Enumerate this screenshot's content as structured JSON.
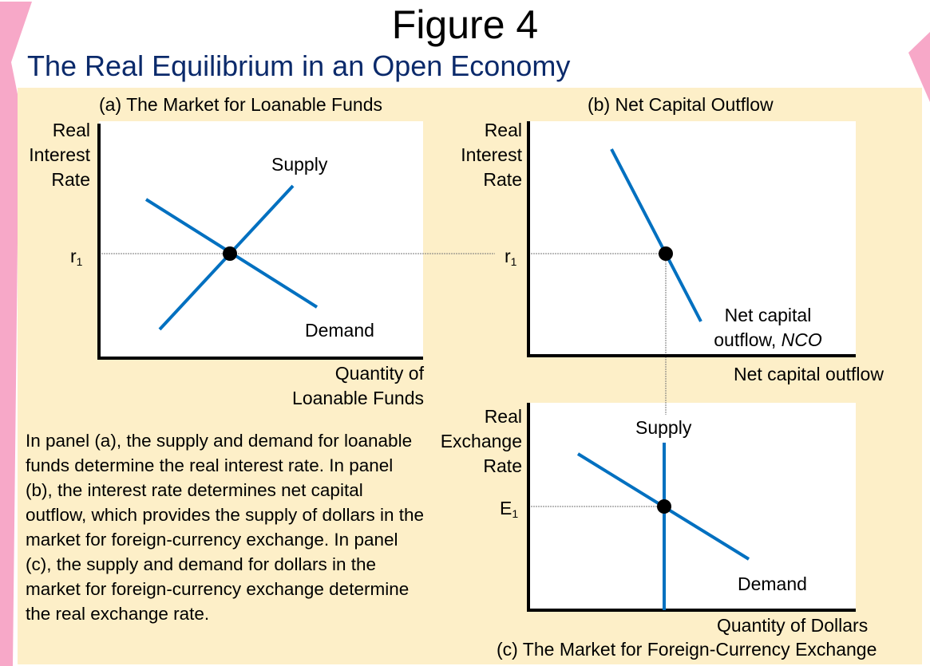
{
  "figure": {
    "title": "Figure 4",
    "subtitle": "The Real Equilibrium in an Open Economy"
  },
  "colors": {
    "background_panel": "#fdefc8",
    "curve": "#0070c0",
    "subtitle": "#0b2a6b",
    "edge_accent": "#f7a8c8",
    "point": "#000000"
  },
  "panel_a": {
    "title": "(a) The Market for Loanable Funds",
    "y_label": [
      "Real",
      "Interest",
      "Rate"
    ],
    "x_label": [
      "Quantity of",
      "Loanable Funds"
    ],
    "tick_r": "r",
    "tick_sub": "1",
    "supply_label": "Supply",
    "demand_label": "Demand"
  },
  "panel_b": {
    "title": "(b) Net Capital Outflow",
    "y_label": [
      "Real",
      "Interest",
      "Rate"
    ],
    "x_label": "Net capital outflow",
    "tick_r": "r",
    "tick_sub": "1",
    "curve_label_line1": "Net capital",
    "curve_label_line2_prefix": "outflow, ",
    "curve_label_line2_italic": "NCO"
  },
  "panel_c": {
    "title": "(c) The Market for Foreign-Currency Exchange",
    "y_label": [
      "Real",
      "Exchange",
      "Rate"
    ],
    "x_label": "Quantity of Dollars",
    "tick_e": "E",
    "tick_sub": "1",
    "supply_label": "Supply",
    "demand_label": "Demand"
  },
  "caption": "In panel (a), the supply and demand for loanable funds determine the real interest rate. In panel (b), the interest rate determines net capital outflow, which provides the supply of dollars in the market for foreign-currency exchange. In panel (c), the supply and demand for dollars in the market for foreign-currency exchange determine the real exchange rate."
}
